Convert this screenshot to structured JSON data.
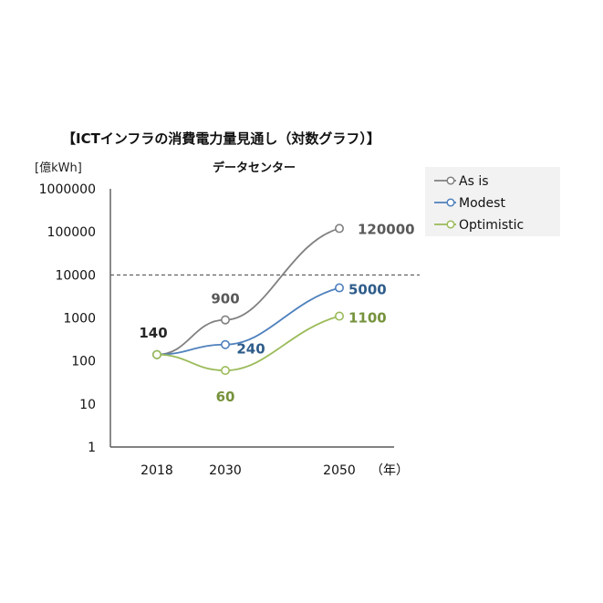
{
  "chart_data": {
    "type": "line",
    "title": "【ICTインフラの消費電力量見通し（対数グラフ）】",
    "subtitle": "データセンター",
    "ylabel": "[億kWh]",
    "xlabel": "（年）",
    "yscale": "log",
    "ylim": [
      1,
      1000000
    ],
    "yticks": [
      "1",
      "10",
      "100",
      "1000",
      "10000",
      "100000",
      "1000000"
    ],
    "x": [
      "2018",
      "2030",
      "2050"
    ],
    "reference_line": {
      "y": 10000,
      "style": "dashed"
    },
    "legend_position": "top-right",
    "series": [
      {
        "name": "As is",
        "color": "#808080",
        "values": [
          140,
          900,
          120000
        ],
        "labels": [
          "140",
          "900",
          "120000"
        ]
      },
      {
        "name": "Modest",
        "color": "#4f81bd",
        "values": [
          140,
          240,
          5000
        ],
        "labels": [
          "",
          "240",
          "5000"
        ]
      },
      {
        "name": "Optimistic",
        "color": "#9bbb59",
        "values": [
          140,
          60,
          1100
        ],
        "labels": [
          "",
          "60",
          "1100"
        ]
      }
    ],
    "label_colors": {
      "As is": "#595959",
      "Modest": "#2e5c8a",
      "Optimistic": "#76923c"
    }
  }
}
